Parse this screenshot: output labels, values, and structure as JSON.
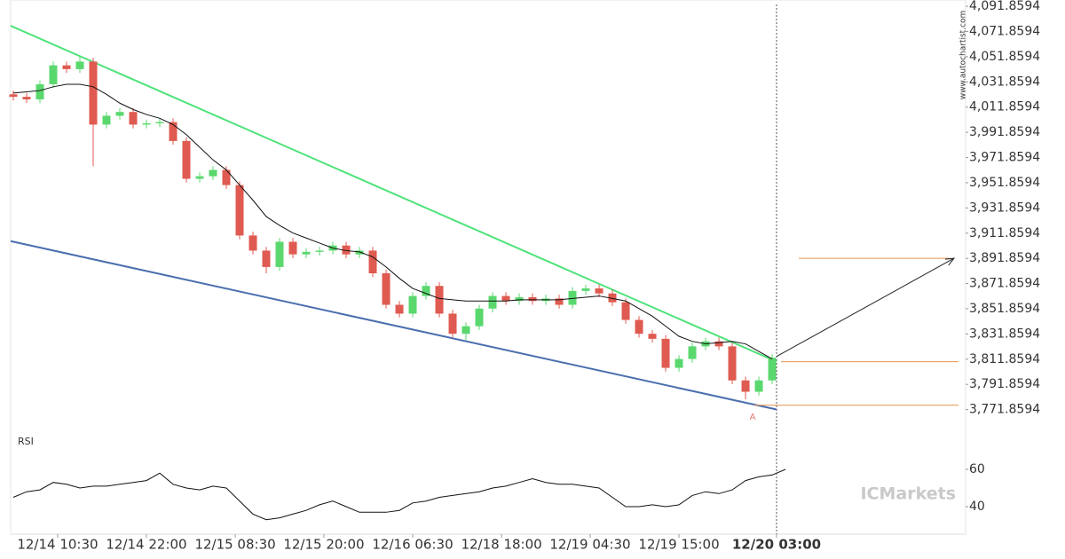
{
  "chart_data": [
    {
      "type": "candlestick",
      "xlim": [
        -0.2,
        71.53
      ],
      "xticks": [
        {
          "value": 3.33,
          "label": "12/14 10:30"
        },
        {
          "value": 10,
          "label": "12/14 22:00"
        },
        {
          "value": 16.67,
          "label": "12/15 08:30"
        },
        {
          "value": 23.33,
          "label": "12/15 20:00"
        },
        {
          "value": 30,
          "label": "12/16 06:30"
        },
        {
          "value": 36.67,
          "label": "12/18 18:00"
        },
        {
          "value": 43.33,
          "label": "12/19 04:30"
        },
        {
          "value": 50,
          "label": "12/19 15:00"
        },
        {
          "value": 57.33,
          "label": "12/20 03:00"
        }
      ],
      "highlight_tick": 8,
      "ylim": [
        3751.8594,
        4096.8594
      ],
      "yticks": [
        {
          "value": 4091.8594,
          "label": "4,091.8594"
        },
        {
          "value": 4071.8594,
          "label": "4,071.8594"
        },
        {
          "value": 4051.8594,
          "label": "4,051.8594"
        },
        {
          "value": 4031.8594,
          "label": "4,031.8594"
        },
        {
          "value": 4011.8594,
          "label": "4,011.8594"
        },
        {
          "value": 3991.8594,
          "label": "3,991.8594"
        },
        {
          "value": 3971.8594,
          "label": "3,971.8594"
        },
        {
          "value": 3951.8594,
          "label": "3,951.8594"
        },
        {
          "value": 3931.8594,
          "label": "3,931.8594"
        },
        {
          "value": 3911.8594,
          "label": "3,911.8594"
        },
        {
          "value": 3891.8594,
          "label": "3,891.8594"
        },
        {
          "value": 3871.8594,
          "label": "3,871.8594"
        },
        {
          "value": 3851.8594,
          "label": "3,851.8594"
        },
        {
          "value": 3831.8594,
          "label": "3,831.8594"
        },
        {
          "value": 3811.8594,
          "label": "3,811.8594"
        },
        {
          "value": 3791.8594,
          "label": "3,791.8594"
        },
        {
          "value": 3771.8594,
          "label": "3,771.8594"
        }
      ],
      "up_color": "#5ad86e",
      "down_color": "#df5a50",
      "open": [
        4022,
        4020,
        4018,
        4030,
        4045,
        4042,
        4048,
        3998,
        4005,
        4008,
        3998,
        3999,
        4000,
        3985,
        3955,
        3957,
        3962,
        3950,
        3910,
        3898,
        3885,
        3905,
        3895,
        3897,
        3898,
        3902,
        3895,
        3898,
        3880,
        3855,
        3848,
        3862,
        3870,
        3848,
        3832,
        3838,
        3852,
        3862,
        3858,
        3861,
        3858,
        3860,
        3855,
        3866,
        3868,
        3864,
        3857,
        3843,
        3832,
        3828,
        3805,
        3812,
        3822,
        3826,
        3822,
        3795,
        3786,
        3795
      ],
      "high": [
        4025,
        4023,
        4033,
        4048,
        4048,
        4052,
        4051,
        4008,
        4011,
        4011,
        4002,
        4003,
        4003,
        3988,
        3960,
        3965,
        3965,
        3953,
        3913,
        3901,
        3908,
        3908,
        3900,
        3901,
        3905,
        3905,
        3901,
        3901,
        3883,
        3858,
        3865,
        3873,
        3873,
        3851,
        3841,
        3855,
        3865,
        3865,
        3864,
        3864,
        3863,
        3863,
        3869,
        3871,
        3871,
        3867,
        3860,
        3846,
        3835,
        3831,
        3815,
        3825,
        3829,
        3829,
        3825,
        3798,
        3798,
        3816
      ],
      "low": [
        4017,
        4015,
        4015,
        4027,
        4039,
        4039,
        3965,
        3995,
        4002,
        3995,
        3995,
        3996,
        3982,
        3952,
        3952,
        3954,
        3947,
        3907,
        3895,
        3880,
        3882,
        3892,
        3892,
        3894,
        3895,
        3892,
        3892,
        3877,
        3852,
        3845,
        3845,
        3859,
        3845,
        3829,
        3827,
        3835,
        3849,
        3855,
        3855,
        3855,
        3855,
        3852,
        3852,
        3863,
        3861,
        3854,
        3840,
        3829,
        3825,
        3802,
        3802,
        3809,
        3819,
        3819,
        3792,
        3780,
        3783,
        3792
      ],
      "close": [
        4020,
        4018,
        4030,
        4045,
        4042,
        4048,
        3998,
        4005,
        4008,
        3998,
        3999,
        4000,
        3985,
        3955,
        3957,
        3962,
        3950,
        3910,
        3898,
        3885,
        3905,
        3895,
        3897,
        3898,
        3902,
        3895,
        3898,
        3880,
        3855,
        3848,
        3862,
        3870,
        3848,
        3832,
        3838,
        3852,
        3862,
        3858,
        3861,
        3858,
        3860,
        3855,
        3866,
        3868,
        3864,
        3857,
        3843,
        3832,
        3828,
        3805,
        3812,
        3822,
        3826,
        3822,
        3795,
        3786,
        3795,
        3813
      ],
      "moving_average": {
        "color": "#111111",
        "values": [
          4023,
          4024,
          4025,
          4028,
          4030,
          4030,
          4028,
          4022,
          4015,
          4010,
          4006,
          4003,
          3998,
          3990,
          3980,
          3970,
          3962,
          3950,
          3938,
          3925,
          3918,
          3912,
          3908,
          3904,
          3900,
          3898,
          3897,
          3893,
          3885,
          3876,
          3868,
          3864,
          3860,
          3859,
          3858,
          3858,
          3858,
          3858,
          3859,
          3859,
          3859,
          3859,
          3860,
          3861,
          3862,
          3860,
          3858,
          3852,
          3846,
          3838,
          3830,
          3826,
          3824,
          3825,
          3826,
          3824,
          3818,
          3812
        ]
      },
      "trend_lines": [
        {
          "color": "#4fe37a",
          "x": [
            -0.2,
            57.33
          ],
          "values": [
            4076.4,
            3809.9
          ]
        },
        {
          "color": "#4a6fae",
          "x": [
            -0.2,
            57.33
          ],
          "values": [
            3905.5,
            3771.9
          ]
        }
      ],
      "levels": [
        {
          "color": "#e89450",
          "x": [
            59.0,
            70.33
          ],
          "value": 3891.86
        },
        {
          "color": "#e89450",
          "x": [
            57.66,
            71.0
          ],
          "value": 3809.9
        },
        {
          "color": "#e89450",
          "x": [
            55.66,
            71.0
          ],
          "value": 3775.4
        }
      ],
      "forecast_arrow": {
        "color": "#222222",
        "x": [
          57.33,
          70.66
        ],
        "values": [
          3814,
          3891.9
        ]
      },
      "marker": {
        "x": 55.53,
        "value": 3766,
        "label": "A",
        "color": "#e27a6a"
      },
      "current_line_x": 57.33,
      "watermark": "www.autochartist.com"
    },
    {
      "type": "line",
      "title": "RSI",
      "xlim": [
        -0.2,
        71.53
      ],
      "ylim": [
        26.2,
        73.8
      ],
      "yticks": [
        40,
        60
      ],
      "color": "#111111",
      "values": [
        45,
        48,
        49,
        53,
        52,
        50,
        51,
        51,
        52,
        53,
        54,
        58,
        52,
        50,
        49,
        51,
        50,
        43,
        36,
        33,
        34,
        36,
        38,
        41,
        43,
        40,
        37,
        37,
        37,
        38,
        42,
        43,
        45,
        46,
        47,
        48,
        50,
        51,
        53,
        55,
        53,
        52,
        52,
        51,
        50,
        45,
        40,
        40,
        41,
        40,
        41,
        46,
        48,
        47,
        49,
        54,
        56,
        57,
        60
      ],
      "watermark": "ICMarkets"
    }
  ]
}
